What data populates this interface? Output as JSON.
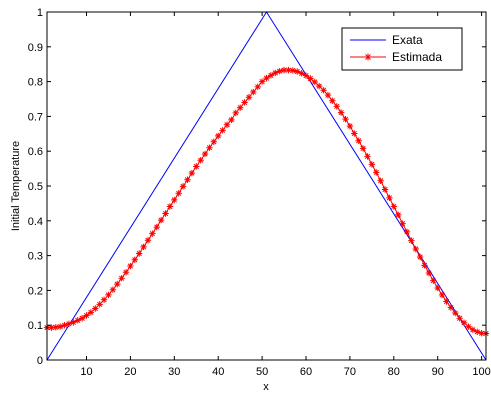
{
  "chart_data": {
    "type": "line",
    "xlabel": "x",
    "ylabel": "Initial Temperature",
    "xlim": [
      1,
      101
    ],
    "ylim": [
      0,
      1
    ],
    "xticks": [
      10,
      20,
      30,
      40,
      50,
      60,
      70,
      80,
      90,
      100
    ],
    "yticks": [
      0,
      0.1,
      0.2,
      0.3,
      0.4,
      0.5,
      0.6,
      0.7,
      0.8,
      0.9,
      1
    ],
    "ytick_labels": [
      "0",
      "0.1",
      "0.2",
      "0.3",
      "0.4",
      "0.5",
      "0.6",
      "0.7",
      "0.8",
      "0.9",
      "1"
    ],
    "grid": false,
    "legend_position": "top-right",
    "series": [
      {
        "name": "Exata",
        "color": "#0000ff",
        "marker": "none",
        "x": [
          1,
          51,
          101
        ],
        "y": [
          0,
          1,
          0
        ]
      },
      {
        "name": "Estimada",
        "color": "#ff0000",
        "marker": "asterisk",
        "x": [
          1,
          2,
          3,
          4,
          5,
          6,
          7,
          8,
          9,
          10,
          11,
          12,
          13,
          14,
          15,
          16,
          17,
          18,
          19,
          20,
          21,
          22,
          23,
          24,
          25,
          26,
          27,
          28,
          29,
          30,
          31,
          32,
          33,
          34,
          35,
          36,
          37,
          38,
          39,
          40,
          41,
          42,
          43,
          44,
          45,
          46,
          47,
          48,
          49,
          50,
          51,
          52,
          53,
          54,
          55,
          56,
          57,
          58,
          59,
          60,
          61,
          62,
          63,
          64,
          65,
          66,
          67,
          68,
          69,
          70,
          71,
          72,
          73,
          74,
          75,
          76,
          77,
          78,
          79,
          80,
          81,
          82,
          83,
          84,
          85,
          86,
          87,
          88,
          89,
          90,
          91,
          92,
          93,
          94,
          95,
          96,
          97,
          98,
          99,
          100,
          101
        ],
        "y": [
          0.093,
          0.093,
          0.094,
          0.096,
          0.1,
          0.104,
          0.108,
          0.114,
          0.12,
          0.128,
          0.137,
          0.148,
          0.16,
          0.173,
          0.187,
          0.202,
          0.218,
          0.235,
          0.252,
          0.27,
          0.288,
          0.306,
          0.325,
          0.344,
          0.363,
          0.382,
          0.402,
          0.421,
          0.441,
          0.46,
          0.479,
          0.499,
          0.518,
          0.537,
          0.556,
          0.574,
          0.592,
          0.61,
          0.627,
          0.644,
          0.66,
          0.676,
          0.69,
          0.71,
          0.725,
          0.74,
          0.755,
          0.77,
          0.785,
          0.8,
          0.81,
          0.818,
          0.825,
          0.83,
          0.833,
          0.833,
          0.832,
          0.829,
          0.824,
          0.817,
          0.809,
          0.799,
          0.787,
          0.775,
          0.761,
          0.745,
          0.729,
          0.711,
          0.692,
          0.672,
          0.651,
          0.63,
          0.608,
          0.585,
          0.562,
          0.539,
          0.515,
          0.49,
          0.466,
          0.441,
          0.417,
          0.392,
          0.368,
          0.343,
          0.319,
          0.296,
          0.272,
          0.25,
          0.228,
          0.207,
          0.187,
          0.168,
          0.151,
          0.135,
          0.12,
          0.107,
          0.096,
          0.087,
          0.081,
          0.077,
          0.076
        ]
      }
    ]
  }
}
